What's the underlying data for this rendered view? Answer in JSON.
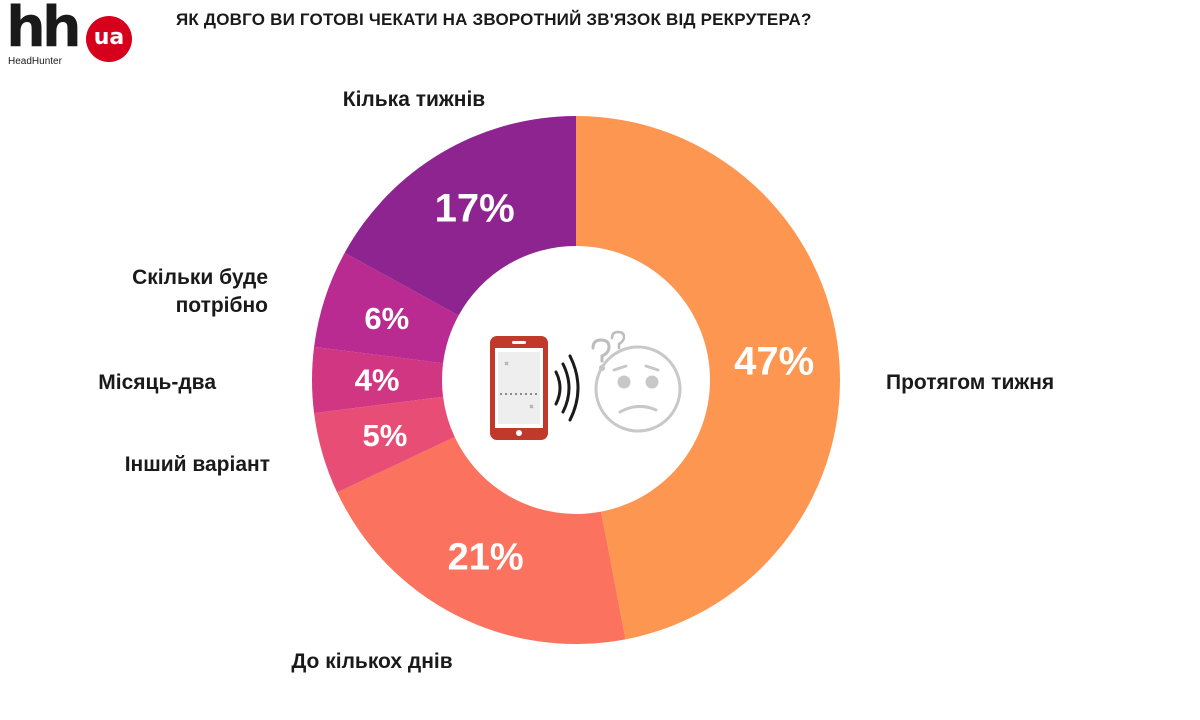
{
  "logo": {
    "brand": "hh",
    "badge": "ua",
    "subtitle": "HeadHunter"
  },
  "colors": {
    "brand_red": "#d6001c",
    "center_icon_gray": "#c8c8c8",
    "phone_red": "#c0392b"
  },
  "icons": [
    "phone-icon",
    "vibration-waves-icon",
    "confused-face-icon",
    "question-marks-icon"
  ],
  "chart_data": {
    "type": "pie",
    "title": "ЯК ДОВГО ВИ ГОТОВІ ЧЕКАТИ НА ЗВОРОТНИЙ ЗВ'ЯЗОК ВІД РЕКРУТЕРА?",
    "donut": true,
    "unit": "%",
    "slices": [
      {
        "label": "Протягом тижня",
        "value": 47,
        "display": "47%",
        "color": "#fd9651"
      },
      {
        "label": "До кількох днів",
        "value": 21,
        "display": "21%",
        "color": "#fb735e"
      },
      {
        "label": "Інший варіант",
        "value": 5,
        "display": "5%",
        "color": "#e84e75"
      },
      {
        "label": "Місяць-два",
        "value": 4,
        "display": "4%",
        "color": "#d03682"
      },
      {
        "label": "Скільки буде потрібно",
        "value": 6,
        "display": "6%",
        "color": "#b92b90"
      },
      {
        "label": "Кілька тижнів",
        "value": 17,
        "display": "17%",
        "color": "#8e248f"
      }
    ]
  }
}
